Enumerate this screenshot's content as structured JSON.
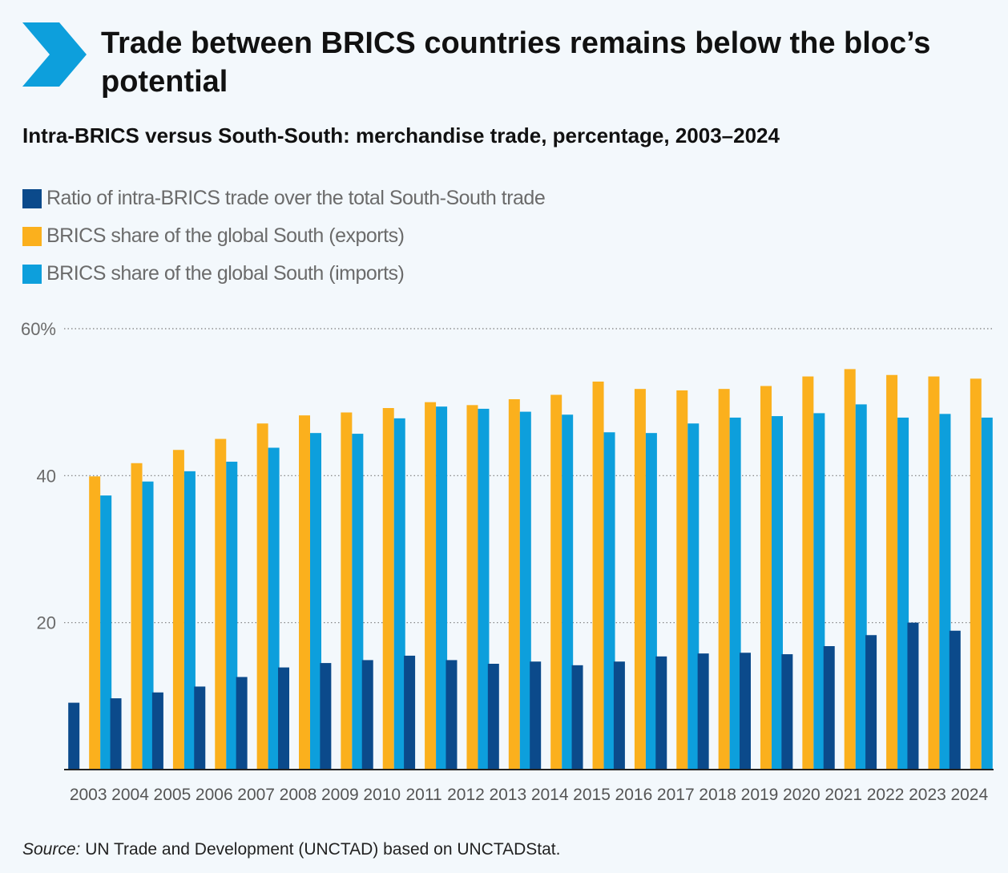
{
  "header": {
    "icon": "chevron-right-icon",
    "title": "Trade between BRICS countries remains below the bloc’s potential",
    "subtitle": "Intra-BRICS versus South-South: merchandise trade, percentage, 2003–2024"
  },
  "legend": [
    {
      "label": "Ratio of intra-BRICS trade over the total South-South trade",
      "color": "#0b4a8b"
    },
    {
      "label": "BRICS share of the global South (exports)",
      "color": "#fbb01d"
    },
    {
      "label": "BRICS share of the global South (imports)",
      "color": "#0d9fdc"
    }
  ],
  "chart_data": {
    "type": "bar",
    "categories": [
      "2003",
      "2004",
      "2005",
      "2006",
      "2007",
      "2008",
      "2009",
      "2010",
      "2011",
      "2012",
      "2013",
      "2014",
      "2015",
      "2016",
      "2017",
      "2018",
      "2019",
      "2020",
      "2021",
      "2022",
      "2023",
      "2024"
    ],
    "series": [
      {
        "name": "Ratio of intra-BRICS trade over the total South-South trade",
        "color": "#0b4a8b",
        "values": [
          9.1,
          9.7,
          10.5,
          11.3,
          12.6,
          13.9,
          14.5,
          14.9,
          15.5,
          14.9,
          14.4,
          14.7,
          14.2,
          14.7,
          15.4,
          15.8,
          15.9,
          15.7,
          16.8,
          18.3,
          20.0,
          18.9
        ]
      },
      {
        "name": "BRICS share of the global South (exports)",
        "color": "#fbb01d",
        "values": [
          39.9,
          41.7,
          43.5,
          45.0,
          47.1,
          48.2,
          48.6,
          49.2,
          50.0,
          49.6,
          50.4,
          51.0,
          52.8,
          51.8,
          51.6,
          51.8,
          52.2,
          53.5,
          54.5,
          53.7,
          53.5,
          53.2
        ]
      },
      {
        "name": "BRICS share of the global South (imports)",
        "color": "#0d9fdc",
        "values": [
          37.3,
          39.2,
          40.6,
          41.9,
          43.8,
          45.8,
          45.7,
          47.8,
          49.4,
          49.1,
          48.7,
          48.3,
          45.9,
          45.8,
          47.1,
          47.9,
          48.1,
          48.5,
          49.7,
          47.9,
          48.4,
          47.9
        ]
      }
    ],
    "ylim": [
      0,
      60
    ],
    "yticks": [
      20,
      40,
      60
    ],
    "ytick_labels": [
      "20",
      "40",
      "60%"
    ],
    "grid": true,
    "legend_position": "top-left"
  },
  "footer": {
    "source_label": "Source:",
    "source_text": " UN Trade and Development (UNCTAD) based on UNCTADStat."
  }
}
